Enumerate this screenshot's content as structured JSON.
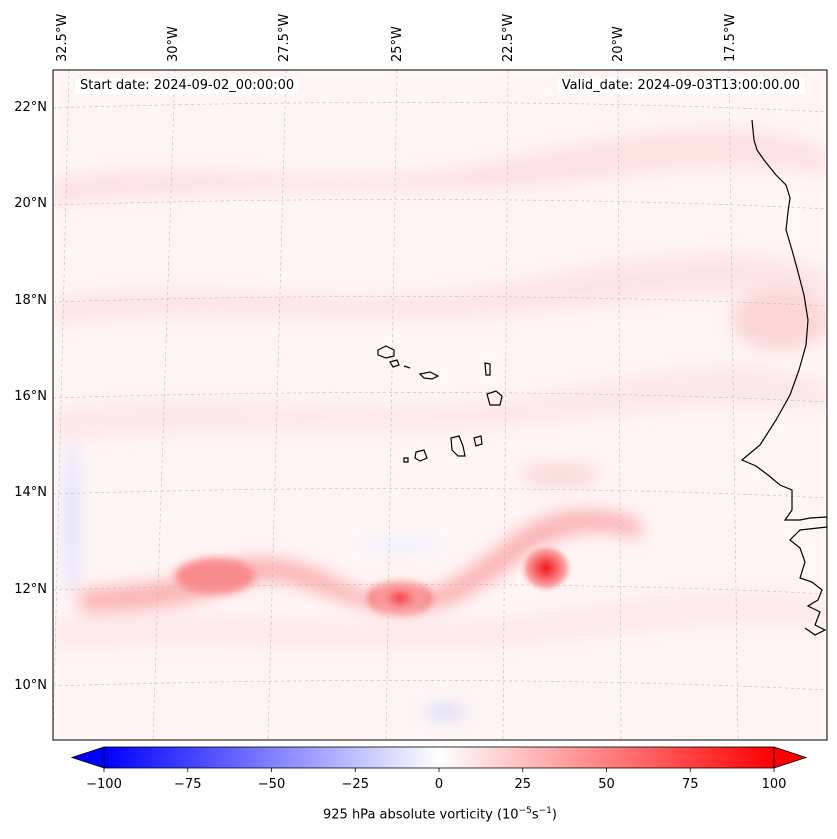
{
  "header": {
    "start_date": "Start date: 2024-09-02_00:00:00",
    "valid_date": "Valid_date: 2024-09-03T13:00:00.00"
  },
  "map": {
    "lon_labels": [
      "32.5°W",
      "30°W",
      "27.5°W",
      "25°W",
      "22.5°W",
      "20°W",
      "17.5°W"
    ],
    "lat_labels": [
      "22°N",
      "20°N",
      "18°N",
      "16°N",
      "14°N",
      "12°N",
      "10°N"
    ],
    "field": "925 hPa absolute vorticity",
    "colors": {
      "positive": "#ff0000",
      "negative": "#0000ff",
      "coast": "#000000",
      "grid": "#bbbbbb"
    }
  },
  "colorbar": {
    "ticks": [
      "−100",
      "−75",
      "−50",
      "−25",
      "0",
      "25",
      "50",
      "75",
      "100"
    ],
    "tick_values": [
      -100,
      -75,
      -50,
      -25,
      0,
      25,
      50,
      75,
      100
    ],
    "min": -100,
    "max": 100,
    "label_prefix": "925 hPa absolute vorticity (10",
    "label_exp1": "−5",
    "label_mid": "s",
    "label_exp2": "−1",
    "label_suffix": ")"
  }
}
